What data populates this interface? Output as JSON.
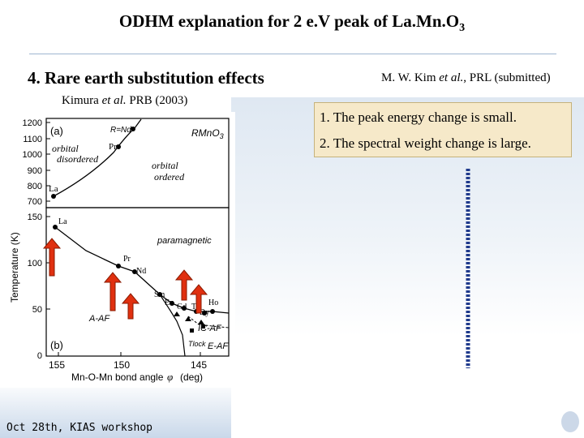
{
  "slide": {
    "title_main": "ODHM explanation for 2 e.V peak of La.Mn.O",
    "title_sub": "3",
    "section_heading": "4. Rare earth substitution effects",
    "ref_kim_prefix": "M. W. Kim ",
    "ref_kim_etal": "et al.",
    "ref_kim_suffix": ", PRL (submitted)",
    "ref_kimura_prefix": "Kimura ",
    "ref_kimura_etal": "et al.",
    "ref_kimura_suffix": " PRB (2003)",
    "point1": "1. The peak energy change is small.",
    "point2": "2. The spectral weight change is large.",
    "footer": "Oct 28th, KIAS workshop"
  },
  "figure": {
    "panel_a": "(a)",
    "panel_b": "(b)",
    "compound": "RMnO",
    "compound_sub": "3",
    "r_nd": "R=Nd",
    "pr": "Pr",
    "la": "La",
    "orbital_disordered_1": "orbital",
    "orbital_disordered_2": "disordered",
    "orbital_ordered_1": "orbital",
    "orbital_ordered_2": "ordered",
    "paramagnetic": "paramagnetic",
    "a_af": "A-AF",
    "c_af": "IC-AF",
    "e_af": "E-AF",
    "t_lock": "Tlock",
    "y_label": "Temperature (K)",
    "x_label": "Mn-O-Mn bond angle",
    "x_unit": "(deg)",
    "phi": "φ",
    "lanthanides": [
      "La",
      "Pr",
      "Nd",
      "Sm",
      "Eu",
      "Gd",
      "Tb",
      "Dy",
      "Ho"
    ],
    "y_ticks_top": [
      "1200",
      "1100",
      "1000",
      "900",
      "800",
      "700"
    ],
    "y_ticks_bottom": [
      "150",
      "100",
      "50",
      "0"
    ],
    "x_ticks": [
      "155",
      "150",
      "145"
    ]
  },
  "colors": {
    "arrow": "#e03010",
    "arrow_stroke": "#8a1a00",
    "callout_bg": "#f6e9c9",
    "dotline": "#1f3a8c"
  }
}
